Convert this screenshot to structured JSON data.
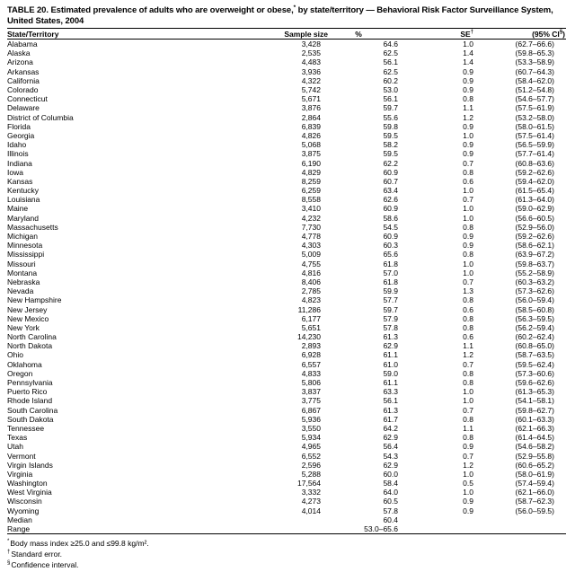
{
  "colors": {
    "text": "#000000",
    "background": "#ffffff"
  },
  "title": {
    "before_sup": "TABLE 20. Estimated prevalence of adults who are overweight or obese,",
    "sup": "*",
    "after_sup": " by state/territory — Behavioral Risk Factor Surveillance System, United States, 2004"
  },
  "table": {
    "columns": [
      {
        "base": "State/Territory",
        "sup": "",
        "suffix": ""
      },
      {
        "base": "Sample size",
        "sup": "",
        "suffix": ""
      },
      {
        "base": "%",
        "sup": "",
        "suffix": ""
      },
      {
        "base": "SE",
        "sup": "†",
        "suffix": ""
      },
      {
        "base": "(95% CI",
        "sup": "§",
        "suffix": ")"
      }
    ],
    "rows": [
      {
        "state": "Alabama",
        "sample_size": "3,428",
        "pct": "64.6",
        "se": "1.0",
        "ci": "(62.7–66.6)"
      },
      {
        "state": "Alaska",
        "sample_size": "2,535",
        "pct": "62.5",
        "se": "1.4",
        "ci": "(59.8–65.3)"
      },
      {
        "state": "Arizona",
        "sample_size": "4,483",
        "pct": "56.1",
        "se": "1.4",
        "ci": "(53.3–58.9)"
      },
      {
        "state": "Arkansas",
        "sample_size": "3,936",
        "pct": "62.5",
        "se": "0.9",
        "ci": "(60.7–64.3)"
      },
      {
        "state": "California",
        "sample_size": "4,322",
        "pct": "60.2",
        "se": "0.9",
        "ci": "(58.4–62.0)"
      },
      {
        "state": "Colorado",
        "sample_size": "5,742",
        "pct": "53.0",
        "se": "0.9",
        "ci": "(51.2–54.8)"
      },
      {
        "state": "Connecticut",
        "sample_size": "5,671",
        "pct": "56.1",
        "se": "0.8",
        "ci": "(54.6–57.7)"
      },
      {
        "state": "Delaware",
        "sample_size": "3,876",
        "pct": "59.7",
        "se": "1.1",
        "ci": "(57.5–61.9)"
      },
      {
        "state": "District of Columbia",
        "sample_size": "2,864",
        "pct": "55.6",
        "se": "1.2",
        "ci": "(53.2–58.0)"
      },
      {
        "state": "Florida",
        "sample_size": "6,839",
        "pct": "59.8",
        "se": "0.9",
        "ci": "(58.0–61.5)"
      },
      {
        "state": "Georgia",
        "sample_size": "4,826",
        "pct": "59.5",
        "se": "1.0",
        "ci": "(57.5–61.4)"
      },
      {
        "state": "Idaho",
        "sample_size": "5,068",
        "pct": "58.2",
        "se": "0.9",
        "ci": "(56.5–59.9)"
      },
      {
        "state": "Illinois",
        "sample_size": "3,875",
        "pct": "59.5",
        "se": "0.9",
        "ci": "(57.7–61.4)"
      },
      {
        "state": "Indiana",
        "sample_size": "6,190",
        "pct": "62.2",
        "se": "0.7",
        "ci": "(60.8–63.6)"
      },
      {
        "state": "Iowa",
        "sample_size": "4,829",
        "pct": "60.9",
        "se": "0.8",
        "ci": "(59.2–62.6)"
      },
      {
        "state": "Kansas",
        "sample_size": "8,259",
        "pct": "60.7",
        "se": "0.6",
        "ci": "(59.4–62.0)"
      },
      {
        "state": "Kentucky",
        "sample_size": "6,259",
        "pct": "63.4",
        "se": "1.0",
        "ci": "(61.5–65.4)"
      },
      {
        "state": "Louisiana",
        "sample_size": "8,558",
        "pct": "62.6",
        "se": "0.7",
        "ci": "(61.3–64.0)"
      },
      {
        "state": "Maine",
        "sample_size": "3,410",
        "pct": "60.9",
        "se": "1.0",
        "ci": "(59.0–62.9)"
      },
      {
        "state": "Maryland",
        "sample_size": "4,232",
        "pct": "58.6",
        "se": "1.0",
        "ci": "(56.6–60.5)"
      },
      {
        "state": "Massachusetts",
        "sample_size": "7,730",
        "pct": "54.5",
        "se": "0.8",
        "ci": "(52.9–56.0)"
      },
      {
        "state": "Michigan",
        "sample_size": "4,778",
        "pct": "60.9",
        "se": "0.9",
        "ci": "(59.2–62.6)"
      },
      {
        "state": "Minnesota",
        "sample_size": "4,303",
        "pct": "60.3",
        "se": "0.9",
        "ci": "(58.6–62.1)"
      },
      {
        "state": "Mississippi",
        "sample_size": "5,009",
        "pct": "65.6",
        "se": "0.8",
        "ci": "(63.9–67.2)"
      },
      {
        "state": "Missouri",
        "sample_size": "4,755",
        "pct": "61.8",
        "se": "1.0",
        "ci": "(59.8–63.7)"
      },
      {
        "state": "Montana",
        "sample_size": "4,816",
        "pct": "57.0",
        "se": "1.0",
        "ci": "(55.2–58.9)"
      },
      {
        "state": "Nebraska",
        "sample_size": "8,406",
        "pct": "61.8",
        "se": "0.7",
        "ci": "(60.3–63.2)"
      },
      {
        "state": "Nevada",
        "sample_size": "2,785",
        "pct": "59.9",
        "se": "1.3",
        "ci": "(57.3–62.6)"
      },
      {
        "state": "New Hampshire",
        "sample_size": "4,823",
        "pct": "57.7",
        "se": "0.8",
        "ci": "(56.0–59.4)"
      },
      {
        "state": "New Jersey",
        "sample_size": "11,286",
        "pct": "59.7",
        "se": "0.6",
        "ci": "(58.5–60.8)"
      },
      {
        "state": "New Mexico",
        "sample_size": "6,177",
        "pct": "57.9",
        "se": "0.8",
        "ci": "(56.3–59.5)"
      },
      {
        "state": "New York",
        "sample_size": "5,651",
        "pct": "57.8",
        "se": "0.8",
        "ci": "(56.2–59.4)"
      },
      {
        "state": "North Carolina",
        "sample_size": "14,230",
        "pct": "61.3",
        "se": "0.6",
        "ci": "(60.2–62.4)"
      },
      {
        "state": "North Dakota",
        "sample_size": "2,893",
        "pct": "62.9",
        "se": "1.1",
        "ci": "(60.8–65.0)"
      },
      {
        "state": "Ohio",
        "sample_size": "6,928",
        "pct": "61.1",
        "se": "1.2",
        "ci": "(58.7–63.5)"
      },
      {
        "state": "Oklahoma",
        "sample_size": "6,557",
        "pct": "61.0",
        "se": "0.7",
        "ci": "(59.5–62.4)"
      },
      {
        "state": "Oregon",
        "sample_size": "4,833",
        "pct": "59.0",
        "se": "0.8",
        "ci": "(57.3–60.6)"
      },
      {
        "state": "Pennsylvania",
        "sample_size": "5,806",
        "pct": "61.1",
        "se": "0.8",
        "ci": "(59.6–62.6)"
      },
      {
        "state": "Puerto Rico",
        "sample_size": "3,837",
        "pct": "63.3",
        "se": "1.0",
        "ci": "(61.3–65.3)"
      },
      {
        "state": "Rhode Island",
        "sample_size": "3,775",
        "pct": "56.1",
        "se": "1.0",
        "ci": "(54.1–58.1)"
      },
      {
        "state": "South Carolina",
        "sample_size": "6,867",
        "pct": "61.3",
        "se": "0.7",
        "ci": "(59.8–62.7)"
      },
      {
        "state": "South Dakota",
        "sample_size": "5,936",
        "pct": "61.7",
        "se": "0.8",
        "ci": "(60.1–63.3)"
      },
      {
        "state": "Tennessee",
        "sample_size": "3,550",
        "pct": "64.2",
        "se": "1.1",
        "ci": "(62.1–66.3)"
      },
      {
        "state": "Texas",
        "sample_size": "5,934",
        "pct": "62.9",
        "se": "0.8",
        "ci": "(61.4–64.5)"
      },
      {
        "state": "Utah",
        "sample_size": "4,965",
        "pct": "56.4",
        "se": "0.9",
        "ci": "(54.6–58.2)"
      },
      {
        "state": "Vermont",
        "sample_size": "6,552",
        "pct": "54.3",
        "se": "0.7",
        "ci": "(52.9–55.8)"
      },
      {
        "state": "Virgin Islands",
        "sample_size": "2,596",
        "pct": "62.9",
        "se": "1.2",
        "ci": "(60.6–65.2)"
      },
      {
        "state": "Virginia",
        "sample_size": "5,288",
        "pct": "60.0",
        "se": "1.0",
        "ci": "(58.0–61.9)"
      },
      {
        "state": "Washington",
        "sample_size": "17,564",
        "pct": "58.4",
        "se": "0.5",
        "ci": "(57.4–59.4)"
      },
      {
        "state": "West Virginia",
        "sample_size": "3,332",
        "pct": "64.0",
        "se": "1.0",
        "ci": "(62.1–66.0)"
      },
      {
        "state": "Wisconsin",
        "sample_size": "4,273",
        "pct": "60.5",
        "se": "0.9",
        "ci": "(58.7–62.3)"
      },
      {
        "state": "Wyoming",
        "sample_size": "4,014",
        "pct": "57.8",
        "se": "0.9",
        "ci": "(56.0–59.5)"
      },
      {
        "state": "Median",
        "sample_size": "",
        "pct": "60.4",
        "se": "",
        "ci": ""
      },
      {
        "state": "Range",
        "sample_size": "",
        "pct": "53.0–65.6",
        "se": "",
        "ci": ""
      }
    ]
  },
  "footnotes": [
    {
      "marker": "*",
      "text": "Body mass index ≥25.0 and ≤99.8 kg/m²."
    },
    {
      "marker": "†",
      "text": "Standard error."
    },
    {
      "marker": "§",
      "text": "Confidence interval."
    }
  ]
}
